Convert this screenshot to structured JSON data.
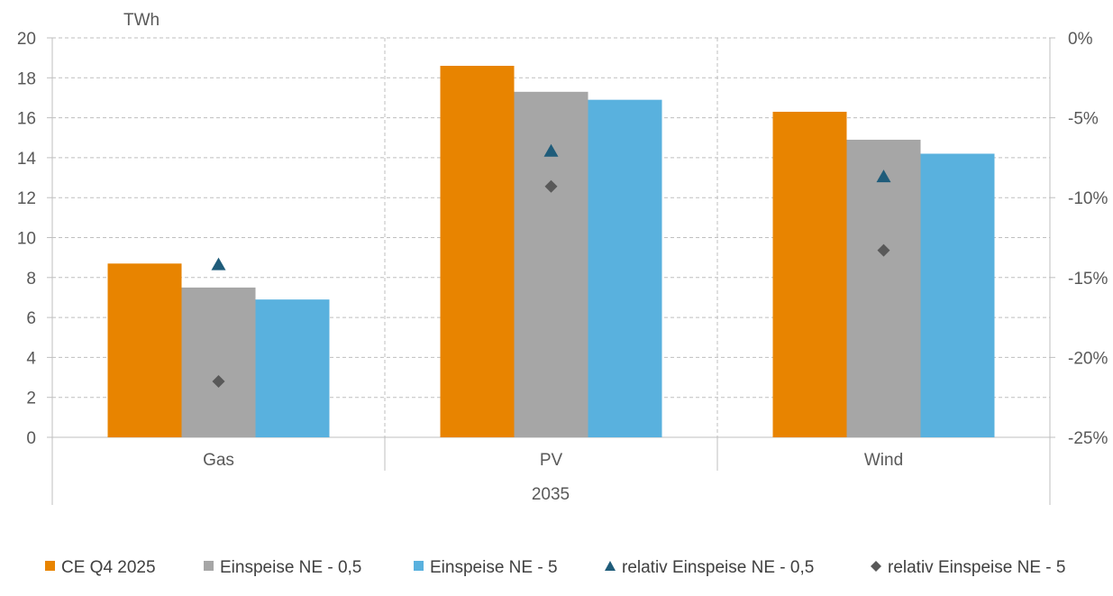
{
  "chart_data": {
    "type": "bar",
    "group_label": "2035",
    "categories": [
      "Gas",
      "PV",
      "Wind"
    ],
    "y_unit": "TWh",
    "ylim": [
      0,
      20
    ],
    "y_ticks": [
      "0",
      "2",
      "4",
      "6",
      "8",
      "10",
      "12",
      "14",
      "16",
      "18",
      "20"
    ],
    "y2lim": [
      -25,
      0
    ],
    "y2_ticks": [
      "0%",
      "-5%",
      "-10%",
      "-15%",
      "-20%",
      "-25%"
    ],
    "grid": true,
    "legend_position": "bottom",
    "series": [
      {
        "name": "CE Q4 2025",
        "kind": "bar",
        "axis": "left",
        "color": "#E88400",
        "values": [
          8.7,
          18.6,
          16.3
        ]
      },
      {
        "name": "Einspeise NE - 0,5",
        "kind": "bar",
        "axis": "left",
        "color": "#A6A6A6",
        "values": [
          7.5,
          17.3,
          14.9
        ]
      },
      {
        "name": "Einspeise NE - 5",
        "kind": "bar",
        "axis": "left",
        "color": "#59B1DE",
        "values": [
          6.9,
          16.9,
          14.2
        ]
      },
      {
        "name": "relativ Einspeise NE - 0,5",
        "kind": "marker",
        "marker": "triangle",
        "axis": "right",
        "color": "#1F5C7A",
        "values": [
          -14.2,
          -7.1,
          -8.7
        ]
      },
      {
        "name": "relativ Einspeise NE - 5",
        "kind": "marker",
        "marker": "diamond",
        "axis": "right",
        "color": "#595959",
        "values": [
          -21.5,
          -9.3,
          -13.3
        ]
      }
    ]
  }
}
